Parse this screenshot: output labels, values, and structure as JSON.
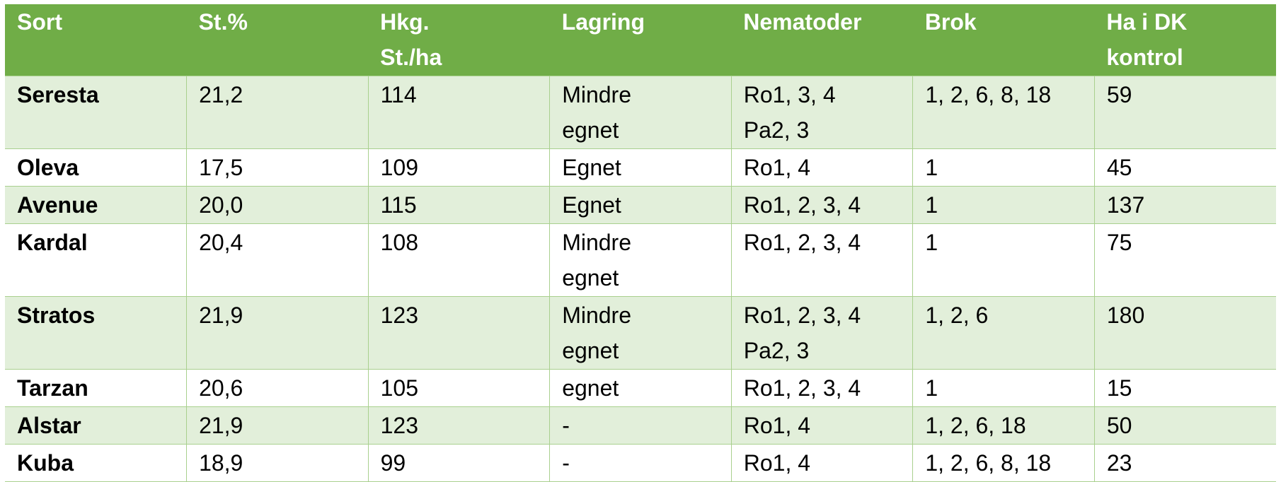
{
  "table": {
    "header": [
      "Sort",
      "St.%",
      "Hkg.\nSt./ha",
      "Lagring",
      "Nematoder",
      "Brok",
      "Ha i DK\nkontrol"
    ],
    "rows": [
      [
        "Seresta",
        "21,2",
        "114",
        "Mindre\negnet",
        "Ro1, 3, 4\nPa2, 3",
        "1, 2, 6, 8, 18",
        "59"
      ],
      [
        "Oleva",
        "17,5",
        "109",
        "Egnet",
        "Ro1, 4",
        "1",
        "45"
      ],
      [
        "Avenue",
        "20,0",
        "115",
        "Egnet",
        "Ro1, 2, 3, 4",
        "1",
        "137"
      ],
      [
        "Kardal",
        "20,4",
        "108",
        "Mindre\negnet",
        "Ro1, 2, 3, 4",
        "1",
        "75"
      ],
      [
        "Stratos",
        "21,9",
        "123",
        "Mindre\negnet",
        "Ro1, 2, 3, 4\nPa2, 3",
        "1, 2, 6",
        "180"
      ],
      [
        "Tarzan",
        "20,6",
        "105",
        "egnet",
        "Ro1, 2, 3, 4",
        "1",
        "15"
      ],
      [
        "Alstar",
        "21,9",
        "123",
        "-",
        "Ro1, 4",
        "1, 2, 6, 18",
        "50"
      ],
      [
        "Kuba",
        "18,9",
        "99",
        "-",
        "Ro1, 4",
        "1, 2, 6, 8, 18",
        "23"
      ]
    ]
  }
}
